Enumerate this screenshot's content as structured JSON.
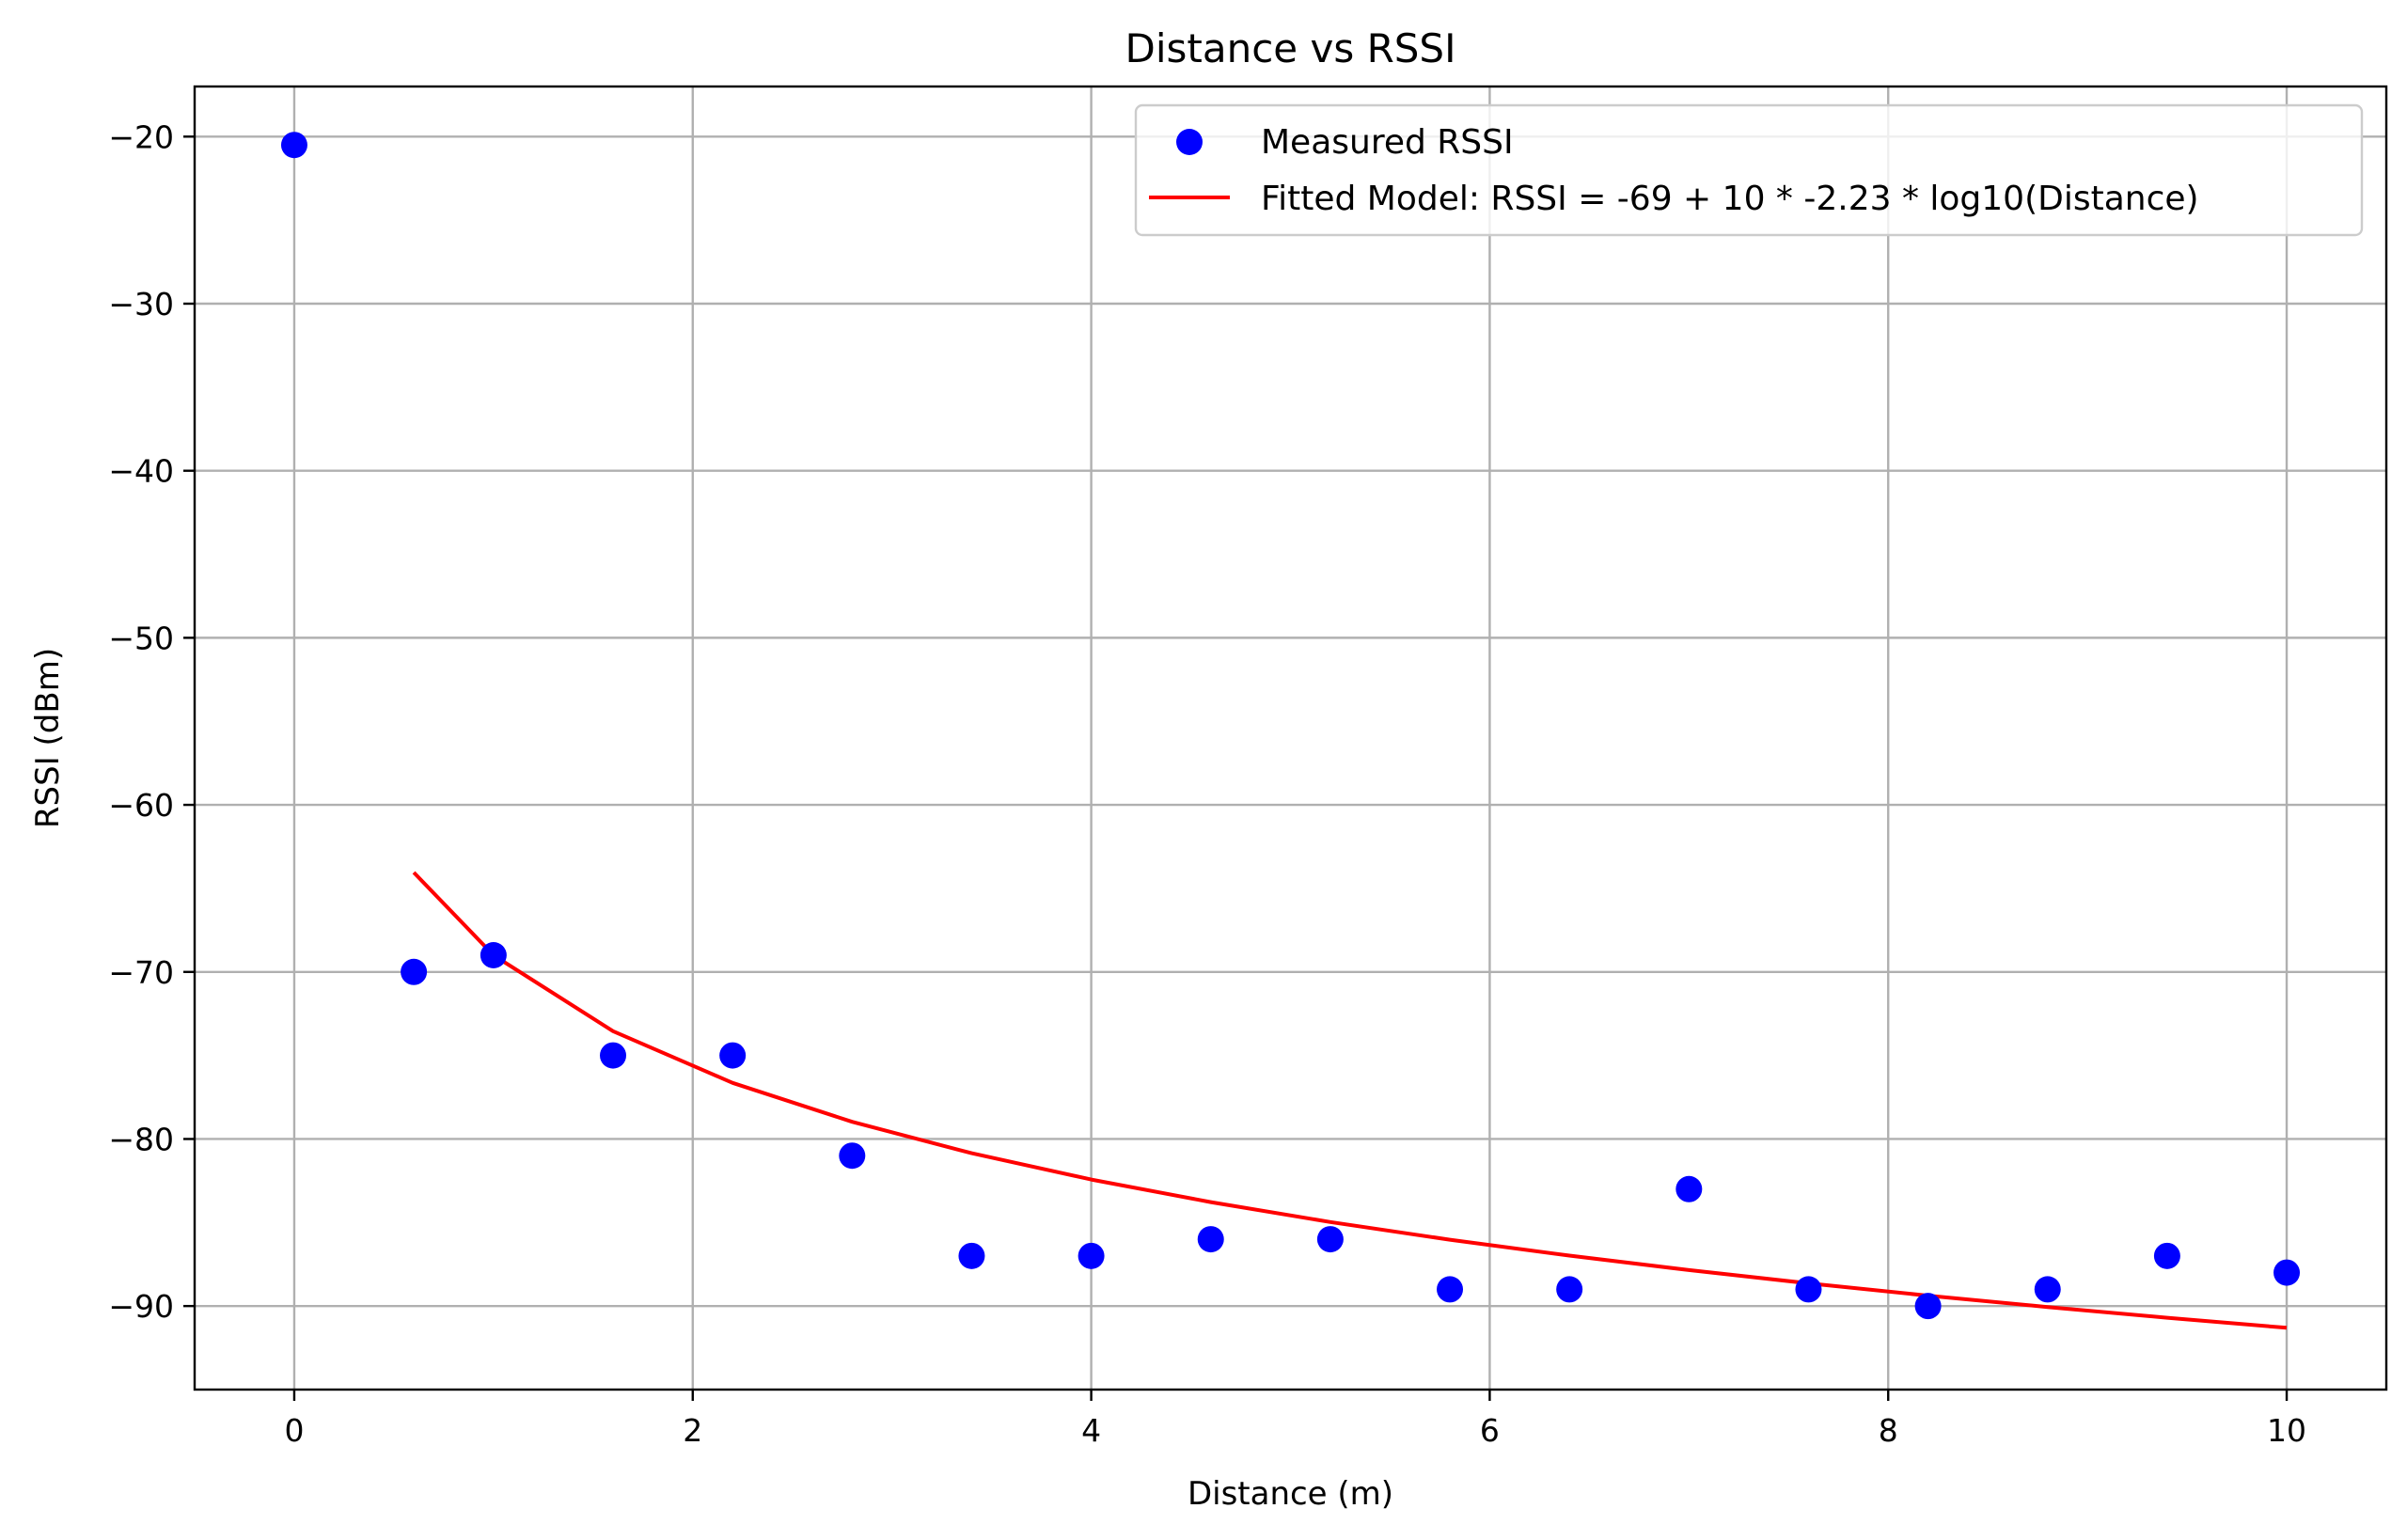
{
  "chart_data": {
    "type": "scatter",
    "title": "Distance vs RSSI",
    "xlabel": "Distance (m)",
    "ylabel": "RSSI (dBm)",
    "xlim": [
      -0.5,
      10.5
    ],
    "ylim": [
      -95,
      -17
    ],
    "xticks": [
      0,
      2,
      4,
      6,
      8,
      10
    ],
    "xtick_labels": [
      "0",
      "2",
      "4",
      "6",
      "8",
      "10"
    ],
    "yticks": [
      -20,
      -30,
      -40,
      -50,
      -60,
      -70,
      -80,
      -90
    ],
    "ytick_labels": [
      "−20",
      "−30",
      "−40",
      "−50",
      "−60",
      "−70",
      "−80",
      "−90"
    ],
    "grid": true,
    "legend_position": "top-right",
    "series": [
      {
        "name": "Measured RSSI",
        "kind": "scatter",
        "color": "#0000ff",
        "x": [
          0,
          0.6,
          1.0,
          1.6,
          2.2,
          2.8,
          3.4,
          4.0,
          4.6,
          5.2,
          5.8,
          6.4,
          7.0,
          7.6,
          8.2,
          8.8,
          9.4,
          10.0
        ],
        "y": [
          -20.5,
          -70,
          -69,
          -75,
          -75,
          -81,
          -87,
          -87,
          -86,
          -86,
          -89,
          -89,
          -83,
          -89,
          -90,
          -89,
          -87,
          -88
        ]
      },
      {
        "name": "Fitted Model: RSSI = -69 + 10 * -2.23 * log10(Distance)",
        "kind": "line",
        "color": "#ff0000",
        "x": [
          0.6,
          1.0,
          1.6,
          2.2,
          2.8,
          3.4,
          4.0,
          4.6,
          5.2,
          5.8,
          6.4,
          7.0,
          7.6,
          8.2,
          8.8,
          9.4,
          10.0
        ],
        "y": [
          -64.05,
          -69.0,
          -73.55,
          -76.64,
          -78.97,
          -80.85,
          -82.43,
          -83.78,
          -84.97,
          -86.03,
          -86.98,
          -87.85,
          -88.64,
          -89.38,
          -90.06,
          -90.7,
          -91.3
        ]
      }
    ]
  }
}
